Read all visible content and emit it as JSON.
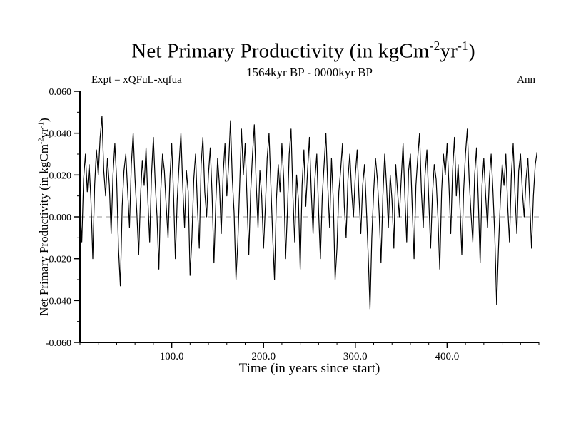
{
  "header": {
    "title_pre": "Net Primary Productivity (in kgCm",
    "title_sup1": "-2",
    "title_mid": "yr",
    "title_sup2": "-1",
    "title_post": ")",
    "subtitle": "1564kyr BP - 0000kyr BP",
    "expt_label": "Expt = xQFuL-xqfua",
    "season_label": "Ann"
  },
  "axis_labels": {
    "xlabel": "Time (in years since start)",
    "ylabel_pre": "Net Primary Productivity (in kgCm",
    "ylabel_sup1": "-2",
    "ylabel_mid": "yr",
    "ylabel_sup2": "-1",
    "ylabel_post": ")"
  },
  "chart_data": {
    "type": "line",
    "title": "Net Primary Productivity (in kgCm-2yr-1)",
    "subtitle": "1564kyr BP - 0000kyr BP",
    "xlabel": "Time (in years since start)",
    "ylabel": "Net Primary Productivity (in kgCm-2yr-1)",
    "legend": [],
    "grid": false,
    "xlim": [
      0,
      500
    ],
    "ylim": [
      -0.06,
      0.06
    ],
    "x_ticks": [
      100,
      200,
      300,
      400
    ],
    "x_tick_labels": [
      "100.0",
      "200.0",
      "300.0",
      "400.0"
    ],
    "x_minor_step": 20,
    "y_ticks": [
      0.06,
      0.04,
      0.02,
      0.0,
      -0.02,
      -0.04,
      -0.06
    ],
    "y_tick_labels": [
      "0.060",
      "0.040",
      "0.020",
      "0.000",
      "-0.020",
      "-0.040",
      "-0.060"
    ],
    "y_minor_step": 0.01,
    "zero_line": {
      "y": 0.0,
      "style": "dashed",
      "color": "#999999"
    },
    "line_color": "#000000",
    "x_start": 0,
    "x_step": 2,
    "values": [
      0.005,
      -0.012,
      0.018,
      0.03,
      0.012,
      0.025,
      0.008,
      -0.02,
      0.015,
      0.032,
      0.02,
      0.038,
      0.048,
      0.022,
      0.01,
      0.028,
      0.015,
      -0.008,
      0.02,
      0.035,
      0.018,
      -0.015,
      -0.033,
      0.005,
      0.022,
      0.03,
      0.012,
      -0.005,
      0.025,
      0.04,
      0.018,
      0.002,
      -0.018,
      0.01,
      0.027,
      0.015,
      0.033,
      0.008,
      -0.012,
      0.02,
      0.038,
      0.016,
      0.0,
      -0.025,
      0.012,
      0.03,
      0.022,
      0.005,
      -0.01,
      0.018,
      0.035,
      0.01,
      -0.02,
      0.008,
      0.025,
      0.04,
      0.015,
      -0.005,
      0.022,
      0.012,
      -0.028,
      -0.01,
      0.018,
      0.03,
      0.005,
      -0.015,
      0.025,
      0.038,
      0.012,
      0.0,
      0.02,
      0.033,
      0.01,
      -0.022,
      0.006,
      0.028,
      0.015,
      -0.008,
      0.02,
      0.035,
      0.01,
      0.025,
      0.046,
      0.018,
      0.002,
      -0.03,
      -0.012,
      0.015,
      0.042,
      0.02,
      0.035,
      0.008,
      -0.018,
      0.012,
      0.03,
      0.044,
      0.016,
      -0.005,
      0.022,
      0.01,
      -0.015,
      0.005,
      0.028,
      0.04,
      0.015,
      -0.01,
      -0.03,
      0.008,
      0.025,
      0.012,
      0.035,
      0.018,
      -0.02,
      0.002,
      0.03,
      0.042,
      0.01,
      -0.012,
      0.02,
      0.008,
      -0.025,
      0.015,
      0.032,
      0.005,
      0.022,
      0.038,
      0.012,
      -0.008,
      0.018,
      0.03,
      0.002,
      -0.02,
      0.01,
      0.025,
      0.04,
      0.015,
      -0.005,
      0.028,
      0.008,
      -0.03,
      -0.015,
      0.012,
      0.022,
      0.035,
      0.005,
      -0.01,
      0.018,
      0.03,
      0.012,
      0.0,
      0.02,
      0.032,
      0.01,
      -0.008,
      0.015,
      0.025,
      0.005,
      -0.018,
      -0.044,
      -0.01,
      0.012,
      0.028,
      0.018,
      0.002,
      -0.022,
      0.01,
      0.03,
      0.015,
      -0.005,
      0.02,
      0.008,
      -0.015,
      0.025,
      0.012,
      0.0,
      0.018,
      0.035,
      0.01,
      -0.012,
      0.022,
      0.03,
      0.005,
      -0.02,
      0.015,
      0.028,
      0.04,
      0.012,
      -0.005,
      0.02,
      0.032,
      0.008,
      -0.015,
      0.01,
      0.025,
      0.018,
      0.0,
      -0.025,
      0.012,
      0.03,
      0.02,
      0.035,
      0.015,
      -0.008,
      0.022,
      0.038,
      0.01,
      0.025,
      0.005,
      -0.018,
      0.012,
      0.03,
      0.042,
      0.018,
      0.002,
      -0.012,
      0.02,
      0.033,
      0.008,
      -0.022,
      0.015,
      0.028,
      0.01,
      -0.005,
      0.018,
      0.03,
      0.012,
      -0.01,
      -0.042,
      -0.015,
      0.008,
      0.025,
      0.015,
      0.03,
      0.005,
      -0.012,
      0.02,
      0.035,
      0.01,
      -0.008,
      0.022,
      0.03,
      0.012,
      0.0,
      0.018,
      0.028,
      0.008,
      -0.015,
      0.01,
      0.025,
      0.031
    ]
  }
}
